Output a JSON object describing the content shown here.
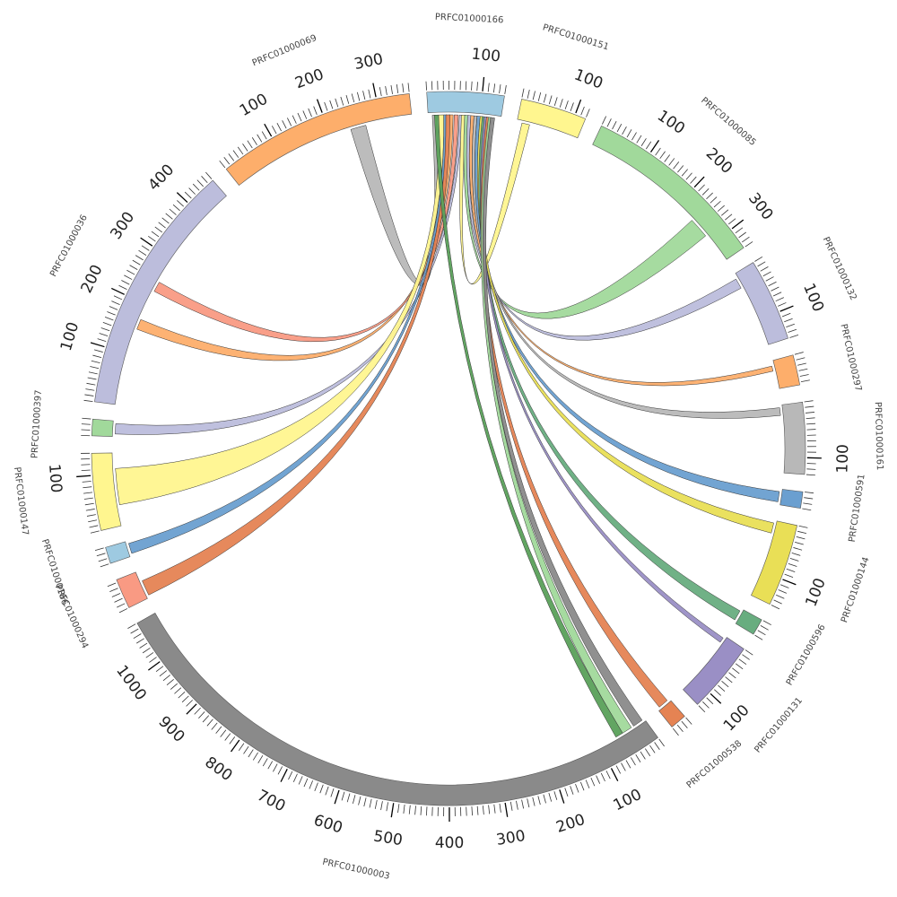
{
  "diagram": {
    "type": "chord",
    "segments": [
      {
        "name": "PRFC01000166",
        "length": 140,
        "color": "#9ecae1",
        "ticks": [
          100
        ]
      },
      {
        "name": "PRFC01000151",
        "length": 120,
        "color": "#fff68f",
        "ticks": [
          100
        ]
      },
      {
        "name": "PRFC01000085",
        "length": 340,
        "color": "#a1d99b",
        "ticks": [
          100,
          200,
          300
        ]
      },
      {
        "name": "PRFC01000132",
        "length": 150,
        "color": "#bcbddc",
        "ticks": [
          100
        ]
      },
      {
        "name": "PRFC01000297",
        "length": 55,
        "color": "#fdae6b",
        "ticks": []
      },
      {
        "name": "PRFC01000161",
        "length": 130,
        "color": "#b8b8b8",
        "ticks": [
          100
        ]
      },
      {
        "name": "PRFC01000591",
        "length": 30,
        "color": "#6a9fd0",
        "ticks": []
      },
      {
        "name": "PRFC01000144",
        "length": 150,
        "color": "#e9df56",
        "ticks": [
          100
        ]
      },
      {
        "name": "PRFC01000596",
        "length": 30,
        "color": "#68ad7f",
        "ticks": []
      },
      {
        "name": "PRFC01000131",
        "length": 130,
        "color": "#9a8fc5",
        "ticks": [
          100
        ]
      },
      {
        "name": "PRFC01000538",
        "length": 30,
        "color": "#e58353",
        "ticks": []
      },
      {
        "name": "PRFC01000003",
        "length": 1080,
        "color": "#8a8a8a",
        "ticks": [
          100,
          200,
          300,
          400,
          500,
          600,
          700,
          800,
          900,
          1000
        ]
      },
      {
        "name": "PRFC01000294",
        "length": 55,
        "color": "#f99a83",
        "ticks": []
      },
      {
        "name": "PRFC01000166",
        "length": 30,
        "color": "#9ecae1",
        "ticks": []
      },
      {
        "name": "PRFC01000147",
        "length": 140,
        "color": "#fff68f",
        "ticks": [
          100
        ]
      },
      {
        "name": "PRFC01000397",
        "length": 30,
        "color": "#a1d99b",
        "ticks": []
      },
      {
        "name": "PRFC01000036",
        "length": 460,
        "color": "#bcbddc",
        "ticks": [
          100,
          200,
          300,
          400
        ]
      },
      {
        "name": "PRFC01000069",
        "length": 360,
        "color": "#fdae6b",
        "ticks": [
          100,
          200,
          300
        ]
      }
    ],
    "links": [
      {
        "from": [
          17,
          240,
          270
        ],
        "to": [
          0,
          8,
          16
        ],
        "color": "#b8b8b8"
      },
      {
        "from": [
          16,
          150,
          170
        ],
        "to": [
          0,
          40,
          48
        ],
        "color": "#fdae6b"
      },
      {
        "from": [
          16,
          230,
          250
        ],
        "to": [
          0,
          50,
          58
        ],
        "color": "#f99a83"
      },
      {
        "from": [
          15,
          5,
          25
        ],
        "to": [
          0,
          60,
          66
        ],
        "color": "#bcbddc"
      },
      {
        "from": [
          14,
          40,
          110
        ],
        "to": [
          0,
          20,
          30
        ],
        "color": "#fff68f"
      },
      {
        "from": [
          13,
          5,
          25
        ],
        "to": [
          0,
          30,
          36
        ],
        "color": "#6a9fd0"
      },
      {
        "from": [
          12,
          5,
          35
        ],
        "to": [
          0,
          34,
          42
        ],
        "color": "#e58353"
      },
      {
        "from": [
          1,
          10,
          25
        ],
        "to": [
          0,
          64,
          72
        ],
        "color": "#fff68f"
      },
      {
        "from": [
          2,
          240,
          280
        ],
        "to": [
          0,
          70,
          78
        ],
        "color": "#a1d99b"
      },
      {
        "from": [
          3,
          10,
          30
        ],
        "to": [
          0,
          76,
          82
        ],
        "color": "#bcbddc"
      },
      {
        "from": [
          4,
          10,
          20
        ],
        "to": [
          0,
          82,
          88
        ],
        "color": "#fdae6b"
      },
      {
        "from": [
          5,
          5,
          20
        ],
        "to": [
          0,
          88,
          94
        ],
        "color": "#b8b8b8"
      },
      {
        "from": [
          6,
          5,
          25
        ],
        "to": [
          0,
          94,
          100
        ],
        "color": "#6a9fd0"
      },
      {
        "from": [
          7,
          5,
          25
        ],
        "to": [
          0,
          100,
          106
        ],
        "color": "#e9df56"
      },
      {
        "from": [
          8,
          5,
          25
        ],
        "to": [
          0,
          104,
          110
        ],
        "color": "#68ad7f"
      },
      {
        "from": [
          9,
          5,
          15
        ],
        "to": [
          0,
          108,
          114
        ],
        "color": "#9a8fc5"
      },
      {
        "from": [
          10,
          5,
          25
        ],
        "to": [
          0,
          112,
          118
        ],
        "color": "#e58353"
      },
      {
        "from": [
          11,
          30,
          50
        ],
        "to": [
          0,
          116,
          122
        ],
        "color": "#a1d99b"
      },
      {
        "from": [
          11,
          5,
          25
        ],
        "to": [
          0,
          120,
          128
        ],
        "color": "#8a8a8a"
      },
      {
        "from": [
          11,
          50,
          65
        ],
        "to": [
          0,
          12,
          20
        ],
        "color": "#5aa05a"
      }
    ]
  }
}
